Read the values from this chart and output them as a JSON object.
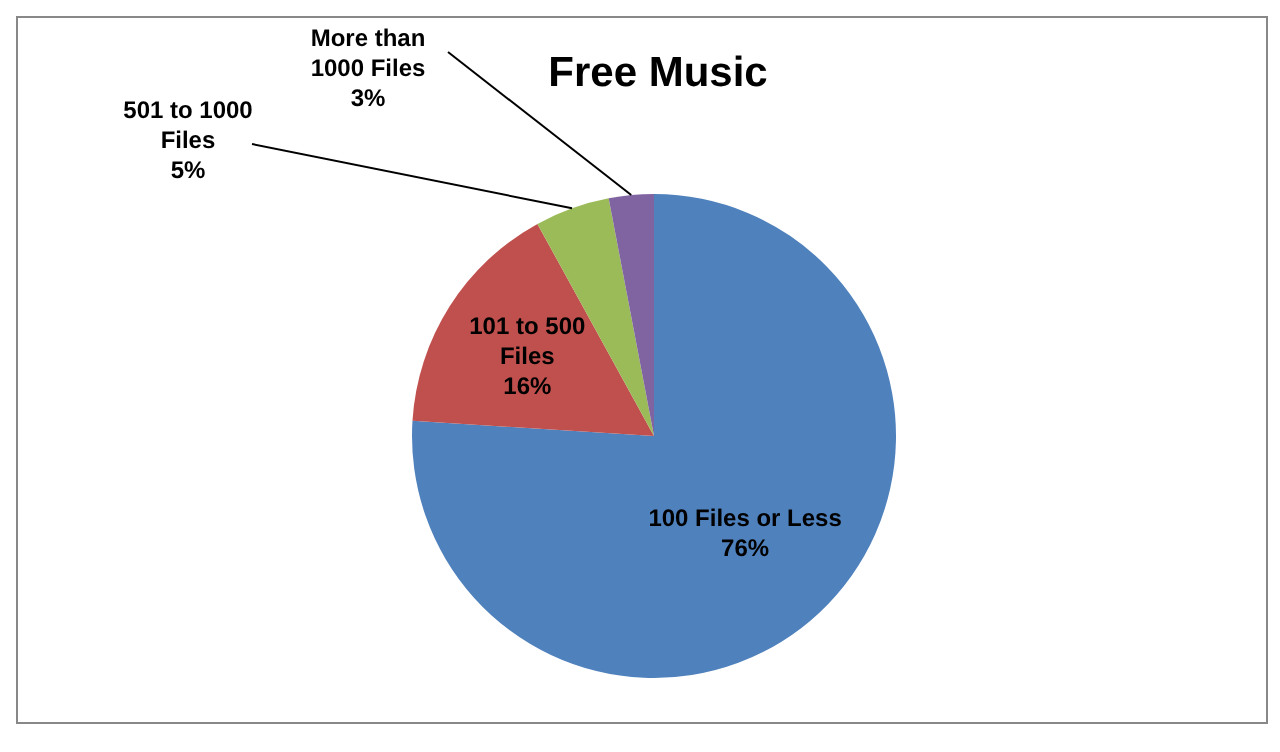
{
  "chart_data": {
    "type": "pie",
    "title": "Free Music",
    "categories": [
      "100 Files or Less",
      "101 to 500 Files",
      "501 to 1000 Files",
      "More than 1000 Files"
    ],
    "values": [
      76,
      16,
      5,
      3
    ],
    "colors": [
      "#4f81bd",
      "#c0504d",
      "#9bbb59",
      "#8064a2"
    ],
    "value_labels": [
      "76%",
      "16%",
      "5%",
      "3%"
    ],
    "legend": false
  }
}
